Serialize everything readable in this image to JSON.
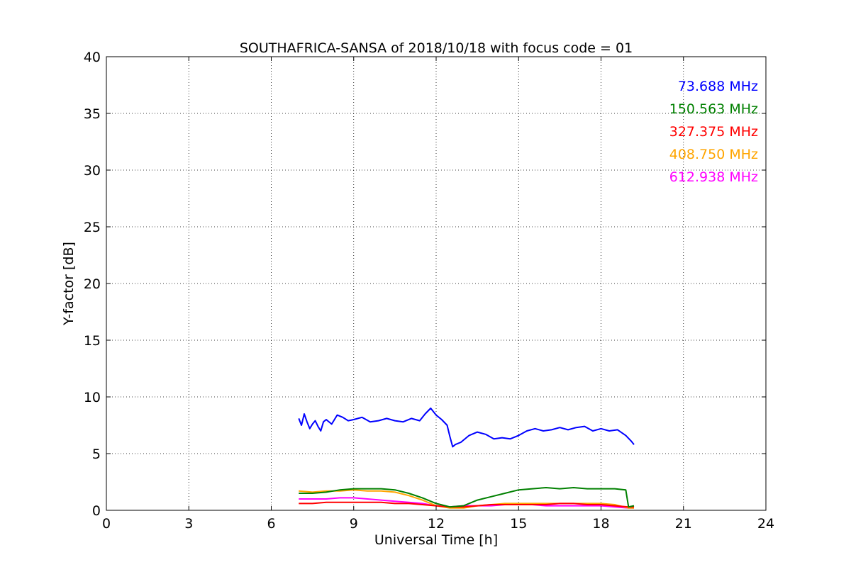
{
  "chart_data": {
    "type": "line",
    "title": "SOUTHAFRICA-SANSA of 2018/10/18 with focus code = 01",
    "xlabel": "Universal Time [h]",
    "ylabel": "Y-factor [dB]",
    "xlim": [
      0,
      24
    ],
    "ylim": [
      0,
      40
    ],
    "xticks": [
      0,
      3,
      6,
      9,
      12,
      15,
      18,
      21,
      24
    ],
    "yticks": [
      0,
      5,
      10,
      15,
      20,
      25,
      30,
      35,
      40
    ],
    "grid": true,
    "legend_position": "top-right",
    "series": [
      {
        "name": "73.688 MHz",
        "color": "#0000ff",
        "points": [
          [
            7.0,
            8.1
          ],
          [
            7.1,
            7.5
          ],
          [
            7.2,
            8.5
          ],
          [
            7.3,
            7.8
          ],
          [
            7.4,
            7.2
          ],
          [
            7.5,
            7.6
          ],
          [
            7.6,
            7.9
          ],
          [
            7.7,
            7.4
          ],
          [
            7.8,
            7.0
          ],
          [
            7.9,
            7.8
          ],
          [
            8.0,
            8.0
          ],
          [
            8.2,
            7.6
          ],
          [
            8.4,
            8.4
          ],
          [
            8.6,
            8.2
          ],
          [
            8.8,
            7.9
          ],
          [
            9.0,
            8.0
          ],
          [
            9.3,
            8.2
          ],
          [
            9.6,
            7.8
          ],
          [
            9.9,
            7.9
          ],
          [
            10.2,
            8.1
          ],
          [
            10.5,
            7.9
          ],
          [
            10.8,
            7.8
          ],
          [
            11.1,
            8.1
          ],
          [
            11.4,
            7.9
          ],
          [
            11.6,
            8.5
          ],
          [
            11.8,
            9.0
          ],
          [
            12.0,
            8.4
          ],
          [
            12.2,
            8.0
          ],
          [
            12.4,
            7.5
          ],
          [
            12.5,
            6.5
          ],
          [
            12.6,
            5.6
          ],
          [
            12.7,
            5.8
          ],
          [
            12.9,
            6.0
          ],
          [
            13.2,
            6.6
          ],
          [
            13.5,
            6.9
          ],
          [
            13.8,
            6.7
          ],
          [
            14.1,
            6.3
          ],
          [
            14.4,
            6.4
          ],
          [
            14.7,
            6.3
          ],
          [
            15.0,
            6.6
          ],
          [
            15.3,
            7.0
          ],
          [
            15.6,
            7.2
          ],
          [
            15.9,
            7.0
          ],
          [
            16.2,
            7.1
          ],
          [
            16.5,
            7.3
          ],
          [
            16.8,
            7.1
          ],
          [
            17.1,
            7.3
          ],
          [
            17.4,
            7.4
          ],
          [
            17.7,
            7.0
          ],
          [
            18.0,
            7.2
          ],
          [
            18.3,
            7.0
          ],
          [
            18.6,
            7.1
          ],
          [
            18.9,
            6.6
          ],
          [
            19.1,
            6.1
          ],
          [
            19.2,
            5.8
          ]
        ]
      },
      {
        "name": "150.563 MHz",
        "color": "#008000",
        "points": [
          [
            7.0,
            1.5
          ],
          [
            7.5,
            1.5
          ],
          [
            8.0,
            1.6
          ],
          [
            8.5,
            1.8
          ],
          [
            9.0,
            1.9
          ],
          [
            9.5,
            1.9
          ],
          [
            10.0,
            1.9
          ],
          [
            10.5,
            1.8
          ],
          [
            11.0,
            1.5
          ],
          [
            11.5,
            1.1
          ],
          [
            12.0,
            0.6
          ],
          [
            12.5,
            0.3
          ],
          [
            13.0,
            0.4
          ],
          [
            13.5,
            0.9
          ],
          [
            14.0,
            1.2
          ],
          [
            14.5,
            1.5
          ],
          [
            15.0,
            1.8
          ],
          [
            15.5,
            1.9
          ],
          [
            16.0,
            2.0
          ],
          [
            16.5,
            1.9
          ],
          [
            17.0,
            2.0
          ],
          [
            17.5,
            1.9
          ],
          [
            18.0,
            1.9
          ],
          [
            18.5,
            1.9
          ],
          [
            18.9,
            1.8
          ],
          [
            19.0,
            0.3
          ],
          [
            19.2,
            0.4
          ]
        ]
      },
      {
        "name": "327.375 MHz",
        "color": "#ff0000",
        "points": [
          [
            7.0,
            0.6
          ],
          [
            7.5,
            0.6
          ],
          [
            8.0,
            0.7
          ],
          [
            8.5,
            0.7
          ],
          [
            9.0,
            0.7
          ],
          [
            9.5,
            0.7
          ],
          [
            10.0,
            0.7
          ],
          [
            10.5,
            0.6
          ],
          [
            11.0,
            0.6
          ],
          [
            11.5,
            0.5
          ],
          [
            12.0,
            0.4
          ],
          [
            12.5,
            0.3
          ],
          [
            13.0,
            0.3
          ],
          [
            13.5,
            0.4
          ],
          [
            14.0,
            0.5
          ],
          [
            14.5,
            0.5
          ],
          [
            15.0,
            0.5
          ],
          [
            15.5,
            0.5
          ],
          [
            16.0,
            0.5
          ],
          [
            16.5,
            0.6
          ],
          [
            17.0,
            0.6
          ],
          [
            17.5,
            0.5
          ],
          [
            18.0,
            0.5
          ],
          [
            18.5,
            0.4
          ],
          [
            19.0,
            0.3
          ],
          [
            19.2,
            0.3
          ]
        ]
      },
      {
        "name": "408.750 MHz",
        "color": "#ffa500",
        "points": [
          [
            7.0,
            1.7
          ],
          [
            7.5,
            1.6
          ],
          [
            8.0,
            1.7
          ],
          [
            8.5,
            1.7
          ],
          [
            9.0,
            1.8
          ],
          [
            9.5,
            1.7
          ],
          [
            10.0,
            1.7
          ],
          [
            10.5,
            1.6
          ],
          [
            11.0,
            1.3
          ],
          [
            11.5,
            0.9
          ],
          [
            12.0,
            0.4
          ],
          [
            12.5,
            0.2
          ],
          [
            13.0,
            0.2
          ],
          [
            13.5,
            0.4
          ],
          [
            14.0,
            0.5
          ],
          [
            14.5,
            0.6
          ],
          [
            15.0,
            0.6
          ],
          [
            15.5,
            0.6
          ],
          [
            16.0,
            0.6
          ],
          [
            16.5,
            0.6
          ],
          [
            17.0,
            0.6
          ],
          [
            17.5,
            0.6
          ],
          [
            18.0,
            0.6
          ],
          [
            18.5,
            0.5
          ],
          [
            19.0,
            0.2
          ],
          [
            19.2,
            0.2
          ]
        ]
      },
      {
        "name": "612.938 MHz",
        "color": "#ff00ff",
        "points": [
          [
            7.0,
            1.0
          ],
          [
            7.5,
            1.0
          ],
          [
            8.0,
            1.0
          ],
          [
            8.5,
            1.1
          ],
          [
            9.0,
            1.1
          ],
          [
            9.5,
            1.0
          ],
          [
            10.0,
            0.9
          ],
          [
            10.5,
            0.8
          ],
          [
            11.0,
            0.7
          ],
          [
            11.5,
            0.6
          ],
          [
            12.0,
            0.4
          ],
          [
            12.5,
            0.3
          ],
          [
            13.0,
            0.4
          ],
          [
            13.5,
            0.4
          ],
          [
            14.0,
            0.4
          ],
          [
            14.5,
            0.5
          ],
          [
            15.0,
            0.5
          ],
          [
            15.5,
            0.5
          ],
          [
            16.0,
            0.4
          ],
          [
            16.5,
            0.4
          ],
          [
            17.0,
            0.4
          ],
          [
            17.5,
            0.4
          ],
          [
            18.0,
            0.4
          ],
          [
            18.5,
            0.3
          ],
          [
            19.0,
            0.2
          ],
          [
            19.2,
            0.2
          ]
        ]
      }
    ]
  }
}
